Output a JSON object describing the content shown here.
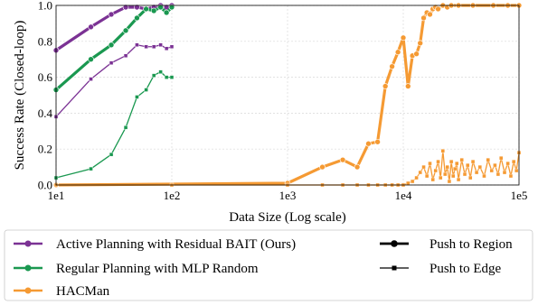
{
  "chart_data": {
    "type": "line",
    "title": "",
    "xlabel": "Data Size (Log scale)",
    "ylabel": "Success Rate (Closed-loop)",
    "xscale": "log",
    "xlim": [
      10,
      100000
    ],
    "ylim": [
      0,
      1.0
    ],
    "grid": true,
    "x_tick_values": [
      10,
      100,
      1000,
      10000,
      100000
    ],
    "x_tick_labels": [
      "1e1",
      "1e2",
      "1e3",
      "1e4",
      "1e5"
    ],
    "y_tick_values": [
      0.0,
      0.2,
      0.4,
      0.6,
      0.8,
      1.0
    ],
    "y_tick_labels": [
      "0.0",
      "0.2",
      "0.4",
      "0.6",
      "0.8",
      "1.0"
    ],
    "legend_placement": "below plot",
    "legend_methods": [
      {
        "label": "Active Planning with Residual BAIT (Ours)",
        "color": "#7b3294"
      },
      {
        "label": "Regular Planning with MLP Random",
        "color": "#1a9850"
      },
      {
        "label": "HACMan",
        "color": "#f59a33"
      }
    ],
    "legend_styles": [
      {
        "label": "Push to Region",
        "style": "thick-circle"
      },
      {
        "label": "Push to Edge",
        "style": "thin-square"
      }
    ],
    "series": [
      {
        "method": "Active Planning with Residual BAIT (Ours)",
        "task": "Push to Region",
        "color": "#7b3294",
        "style": "thick-circle",
        "x": [
          10,
          20,
          30,
          40,
          50,
          60,
          70,
          80,
          90,
          100
        ],
        "y": [
          0.75,
          0.88,
          0.95,
          0.99,
          0.99,
          0.98,
          0.99,
          1.0,
          0.99,
          1.0
        ]
      },
      {
        "method": "Active Planning with Residual BAIT (Ours)",
        "task": "Push to Edge",
        "color": "#7b3294",
        "style": "thin-square",
        "x": [
          10,
          20,
          30,
          40,
          50,
          60,
          70,
          80,
          90,
          100
        ],
        "y": [
          0.38,
          0.59,
          0.68,
          0.72,
          0.78,
          0.77,
          0.77,
          0.78,
          0.76,
          0.77
        ]
      },
      {
        "method": "Regular Planning with MLP Random",
        "task": "Push to Region",
        "color": "#1a9850",
        "style": "thick-circle",
        "x": [
          10,
          20,
          30,
          40,
          50,
          60,
          70,
          80,
          90,
          100
        ],
        "y": [
          0.53,
          0.7,
          0.78,
          0.86,
          0.93,
          0.98,
          0.97,
          0.99,
          0.96,
          0.99
        ]
      },
      {
        "method": "Regular Planning with MLP Random",
        "task": "Push to Edge",
        "color": "#1a9850",
        "style": "thin-square",
        "x": [
          10,
          20,
          30,
          40,
          50,
          60,
          70,
          80,
          90,
          100
        ],
        "y": [
          0.04,
          0.09,
          0.17,
          0.32,
          0.49,
          0.53,
          0.61,
          0.63,
          0.6,
          0.6
        ]
      },
      {
        "method": "HACMan",
        "task": "Push to Region",
        "color": "#f59a33",
        "style": "thick-circle",
        "x": [
          10,
          1000,
          2000,
          3000,
          4000,
          5000,
          6000,
          7000,
          8000,
          9000,
          10000,
          11000,
          12000,
          13000,
          14000,
          15000,
          16000,
          17000,
          18000,
          19000,
          20000,
          22000,
          24000,
          26000,
          30000,
          40000,
          60000,
          80000,
          100000
        ],
        "y": [
          0.0,
          0.01,
          0.1,
          0.14,
          0.1,
          0.23,
          0.24,
          0.55,
          0.66,
          0.74,
          0.82,
          0.55,
          0.72,
          0.73,
          0.79,
          0.93,
          0.96,
          0.95,
          0.98,
          0.99,
          0.98,
          1.0,
          0.99,
          1.0,
          1.0,
          1.0,
          1.0,
          1.0,
          1.0
        ]
      },
      {
        "method": "HACMan",
        "task": "Push to Edge",
        "color": "#f59a33",
        "style": "thin-square",
        "x": [
          10,
          100,
          1000,
          2000,
          3000,
          4000,
          5000,
          6000,
          7000,
          8000,
          9000,
          10000,
          11000,
          12000,
          13000,
          14000,
          15000,
          16000,
          17000,
          18000,
          19000,
          20000,
          21000,
          22000,
          23000,
          24000,
          25000,
          26000,
          27000,
          28000,
          29000,
          30000,
          32000,
          34000,
          36000,
          38000,
          40000,
          43000,
          46000,
          50000,
          54000,
          58000,
          62000,
          66000,
          70000,
          75000,
          80000,
          85000,
          90000,
          95000,
          100000
        ],
        "y": [
          0.0,
          0.0,
          0.0,
          0.0,
          0.0,
          0.0,
          0.0,
          0.0,
          0.0,
          0.0,
          0.0,
          0.0,
          0.01,
          0.02,
          0.04,
          0.07,
          0.1,
          0.05,
          0.12,
          0.03,
          0.08,
          0.13,
          0.04,
          0.19,
          0.06,
          0.1,
          0.02,
          0.13,
          0.05,
          0.09,
          0.12,
          0.03,
          0.14,
          0.06,
          0.11,
          0.04,
          0.13,
          0.07,
          0.1,
          0.05,
          0.14,
          0.08,
          0.11,
          0.06,
          0.15,
          0.07,
          0.12,
          0.05,
          0.13,
          0.08,
          0.18
        ]
      }
    ]
  }
}
